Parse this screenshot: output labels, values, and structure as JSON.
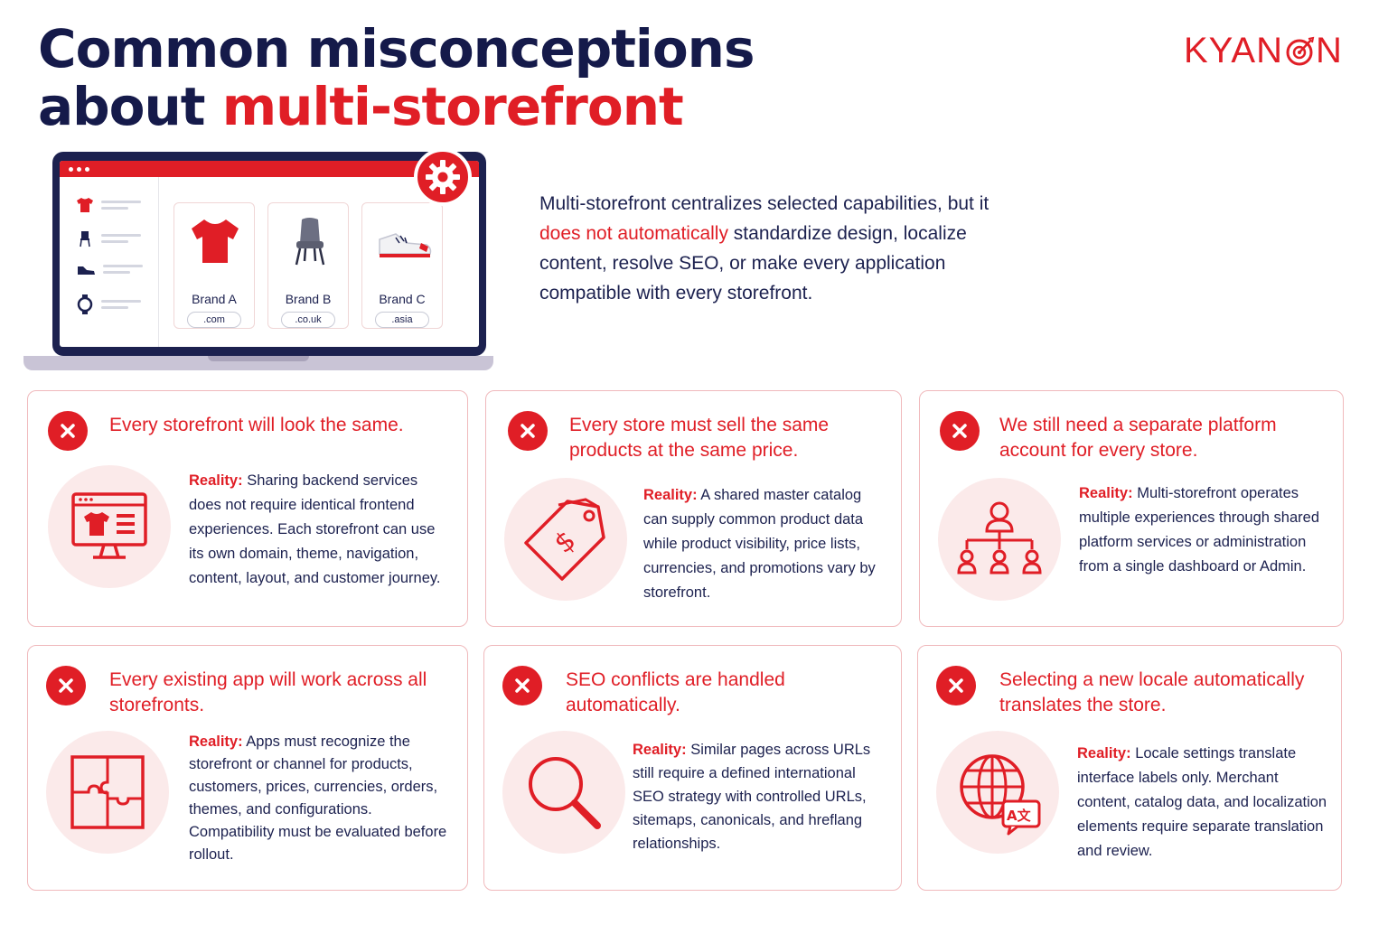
{
  "header": {
    "title_line1": "Common misconceptions",
    "title_line2_plain": "about ",
    "title_line2_accent": "multi-storefront",
    "logo_text_before": "KYAN",
    "logo_text_after": "N"
  },
  "illustration": {
    "brands": [
      {
        "name": "Brand A",
        "domain": ".com"
      },
      {
        "name": "Brand B",
        "domain": ".co.uk"
      },
      {
        "name": "Brand C",
        "domain": ".asia"
      }
    ],
    "sidebar_icons": [
      "tshirt-icon",
      "chair-icon",
      "shoe-icon",
      "watch-icon"
    ],
    "badge_icon": "gear-icon"
  },
  "intro": {
    "part1": "Multi-storefront centralizes selected capabilities, but it ",
    "highlight": "does not automatically",
    "part2": " standardize design, localize content, resolve SEO, or make every application compatible with every storefront."
  },
  "reality_label": "Reality:",
  "cards": [
    {
      "title": "Every storefront will look the same.",
      "icon": "storefront-monitor-icon",
      "reality": "Sharing backend services does not require identical frontend experiences. Each storefront can use its own domain, theme, navigation, content, layout, and customer journey."
    },
    {
      "title": "Every store must sell the same products at the same price.",
      "icon": "price-tag-icon",
      "reality": "A shared master catalog can supply common product data while product visibility, price lists, currencies, and promotions vary by storefront."
    },
    {
      "title": "We still need a separate platform account for every store.",
      "icon": "org-chart-icon",
      "reality": "Multi-storefront operates multiple experiences through shared platform services or administration from a single dashboard or Admin."
    },
    {
      "title": "Every existing app will work across all storefronts.",
      "icon": "puzzle-icon",
      "reality": "Apps must recognize the storefront or channel for products, customers, prices, currencies, orders, themes, and configurations. Compatibility must be evaluated before rollout."
    },
    {
      "title": "SEO conflicts are handled automatically.",
      "icon": "magnifier-icon",
      "reality": "Similar pages across URLs still require a defined international SEO strategy with controlled URLs, sitemaps, canonicals, and hreflang relationships."
    },
    {
      "title": "Selecting a new locale automatically translates the store.",
      "icon": "globe-translate-icon",
      "reality": "Locale settings translate interface labels only. Merchant content, catalog data, and localization elements require separate translation and review."
    }
  ],
  "colors": {
    "accent": "#e01e26",
    "navy": "#1c214f",
    "icon_bg": "#fbeaea",
    "card_border": "#f0b9bc"
  }
}
